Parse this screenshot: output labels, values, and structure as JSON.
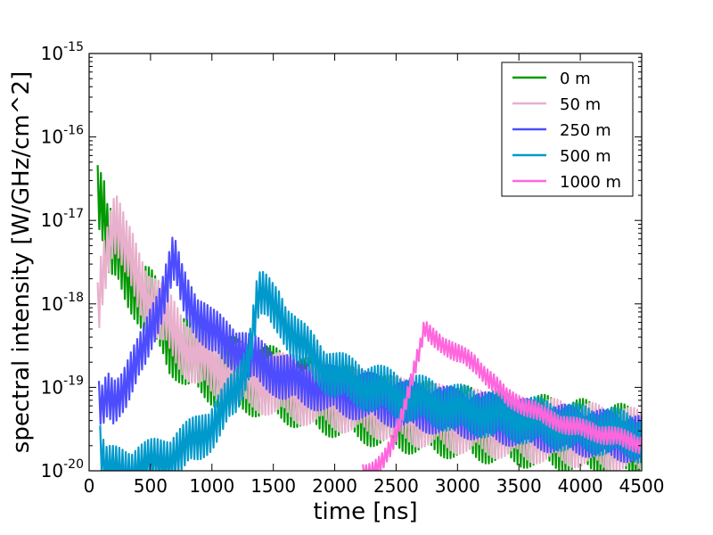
{
  "chart_data": {
    "type": "line",
    "xlabel": "time [ns]",
    "ylabel": "spectral intensity [W/GHz/cm^2]",
    "xlim": [
      0,
      4500
    ],
    "ylim": [
      1e-20,
      1e-15
    ],
    "yscale": "log",
    "grid": false,
    "legend_position": "top-right",
    "x_ticks": [
      "0",
      "500",
      "1000",
      "1500",
      "2000",
      "2500",
      "3000",
      "3500",
      "4000",
      "4500"
    ],
    "y_ticks": [
      {
        "base": "10",
        "exp": "-20"
      },
      {
        "base": "10",
        "exp": "-19"
      },
      {
        "base": "10",
        "exp": "-18"
      },
      {
        "base": "10",
        "exp": "-17"
      },
      {
        "base": "10",
        "exp": "-16"
      },
      {
        "base": "10",
        "exp": "-15"
      }
    ],
    "series": [
      {
        "name": "0 m",
        "color": "#009900",
        "x": [
          70,
          130,
          150,
          200,
          250,
          300,
          350,
          400,
          450,
          500,
          550,
          600,
          650,
          700,
          750,
          800,
          900,
          1000,
          1100,
          1200,
          1300,
          1400,
          1500,
          1600,
          1700,
          1800,
          1900,
          2000,
          2100,
          2200,
          2300,
          2400,
          2500,
          2600,
          2700,
          2800,
          2900,
          3000,
          3200,
          3400,
          3600,
          3800,
          4000,
          4200,
          4400,
          4500
        ],
        "y": [
          2.6e-17,
          1.2e-17,
          6e-18,
          4.5e-18,
          3.5e-18,
          2.5e-18,
          2e-18,
          1.6e-18,
          1.2e-18,
          1e-18,
          7e-19,
          6e-19,
          4e-19,
          3.5e-19,
          3e-19,
          2.5e-19,
          2e-19,
          1.7e-19,
          1.5e-19,
          1.4e-19,
          1.3e-19,
          1.2e-19,
          1.1e-19,
          1e-19,
          9e-20,
          8e-20,
          7.5e-20,
          7e-20,
          6.5e-20,
          6e-20,
          5.5e-20,
          5e-20,
          4.8e-20,
          4.5e-20,
          4.3e-20,
          4.1e-20,
          4e-20,
          3.8e-20,
          3.5e-20,
          3.2e-20,
          3e-20,
          2.8e-20,
          2.6e-20,
          2.4e-20,
          2.2e-20,
          2e-20
        ],
        "noise": 0.45
      },
      {
        "name": "50 m",
        "color": "#e8b0cc",
        "x": [
          70,
          100,
          130,
          160,
          190,
          220,
          250,
          300,
          350,
          400,
          450,
          500,
          600,
          700,
          800,
          900,
          1000,
          1100,
          1200,
          1300,
          1400,
          1500,
          1600,
          1700,
          1800,
          1900,
          2000,
          2200,
          2400,
          2600,
          2800,
          3000,
          3200,
          3400,
          3600,
          3800,
          4000,
          4200,
          4400,
          4500
        ],
        "y": [
          8e-19,
          2e-18,
          3.5e-18,
          6e-18,
          9e-18,
          9.5e-18,
          7e-18,
          4e-18,
          3e-18,
          2e-18,
          1.5e-18,
          1.1e-18,
          7e-19,
          4.5e-19,
          3e-19,
          2.3e-19,
          1.8e-19,
          1.6e-19,
          1.4e-19,
          1.3e-19,
          1.2e-19,
          1.1e-19,
          1e-19,
          9e-20,
          8.5e-20,
          8e-20,
          7.5e-20,
          6.5e-20,
          5.8e-20,
          5e-20,
          4.5e-20,
          4e-20,
          3.7e-20,
          3.4e-20,
          3.1e-20,
          2.9e-20,
          2.7e-20,
          2.5e-20,
          2.3e-20,
          2.2e-20
        ],
        "noise": 0.4
      },
      {
        "name": "250 m",
        "color": "#4d4dff",
        "x": [
          80,
          100,
          150,
          200,
          250,
          300,
          350,
          400,
          450,
          500,
          550,
          600,
          650,
          680,
          700,
          720,
          750,
          800,
          900,
          1000,
          1100,
          1200,
          1300,
          1400,
          1500,
          1600,
          1800,
          2000,
          2200,
          2400,
          2600,
          2800,
          3000,
          3200,
          3400,
          3600,
          3800,
          4000,
          4200,
          4400,
          4500
        ],
        "y": [
          6e-20,
          5e-20,
          8e-20,
          7e-20,
          9e-20,
          1.1e-19,
          1.5e-19,
          2e-19,
          3e-19,
          5e-19,
          8e-19,
          1.3e-18,
          2.2e-18,
          3.3e-18,
          3e-18,
          2.4e-18,
          1.6e-18,
          1.1e-18,
          7e-19,
          4.5e-19,
          3.5e-19,
          3e-19,
          2.3e-19,
          1.9e-19,
          1.6e-19,
          1.3e-19,
          1.1e-19,
          9e-20,
          8e-20,
          7e-20,
          6e-20,
          5.5e-20,
          5e-20,
          4.5e-20,
          4e-20,
          3.6e-20,
          3.2e-20,
          3e-20,
          2.7e-20,
          2.5e-20,
          2.3e-20
        ],
        "noise": 0.3
      },
      {
        "name": "500 m",
        "color": "#0099cc",
        "x": [
          90,
          130,
          200,
          300,
          400,
          500,
          600,
          700,
          800,
          900,
          1000,
          1100,
          1200,
          1250,
          1300,
          1340,
          1370,
          1400,
          1450,
          1500,
          1550,
          1600,
          1700,
          1800,
          1900,
          2000,
          2200,
          2400,
          2600,
          2800,
          3000,
          3200,
          3400,
          3600,
          3800,
          4000,
          4200,
          4400,
          4500
        ],
        "y": [
          2e-20,
          1e-20,
          1e-20,
          1e-20,
          1.1e-20,
          1.2e-20,
          1.3e-20,
          1.6e-20,
          2e-20,
          2.5e-20,
          3.5e-20,
          5.5e-20,
          9e-20,
          1.4e-19,
          2.5e-19,
          6e-19,
          1.2e-18,
          1.3e-18,
          1.1e-18,
          9e-19,
          8e-19,
          6e-19,
          3.5e-19,
          2.5e-19,
          1.8e-19,
          1.4e-19,
          1.1e-19,
          9e-20,
          7.5e-20,
          6.5e-20,
          5.5e-20,
          5e-20,
          4.5e-20,
          4e-20,
          3.5e-20,
          3.2e-20,
          3e-20,
          2.7e-20,
          2.4e-20
        ],
        "noise": 0.3
      },
      {
        "name": "1000 m",
        "color": "#ff66dd",
        "x": [
          2230,
          2300,
          2350,
          2400,
          2450,
          2500,
          2550,
          2600,
          2650,
          2700,
          2730,
          2760,
          2800,
          2850,
          2900,
          2950,
          3000,
          3050,
          3100,
          3150,
          3200,
          3250,
          3300,
          3350,
          3400,
          3450,
          3500,
          3600,
          3700,
          3800,
          3900,
          4000,
          4100,
          4200,
          4300,
          4400,
          4500
        ],
        "y": [
          1e-20,
          1e-20,
          1.1e-20,
          1.3e-20,
          1.8e-20,
          2.8e-20,
          5e-20,
          9e-20,
          1.7e-19,
          3e-19,
          5e-19,
          4.4e-19,
          4e-19,
          3.6e-19,
          3.2e-19,
          2.8e-19,
          2.5e-19,
          2.3e-19,
          2.1e-19,
          1.9e-19,
          1.6e-19,
          1.3e-19,
          1.1e-19,
          9e-20,
          7.5e-20,
          7e-20,
          6.5e-20,
          5.5e-20,
          4.5e-20,
          4e-20,
          3.5e-20,
          3.2e-20,
          3e-20,
          2.7e-20,
          2.5e-20,
          2.3e-20,
          2.1e-20
        ],
        "noise": 0.12
      }
    ]
  }
}
